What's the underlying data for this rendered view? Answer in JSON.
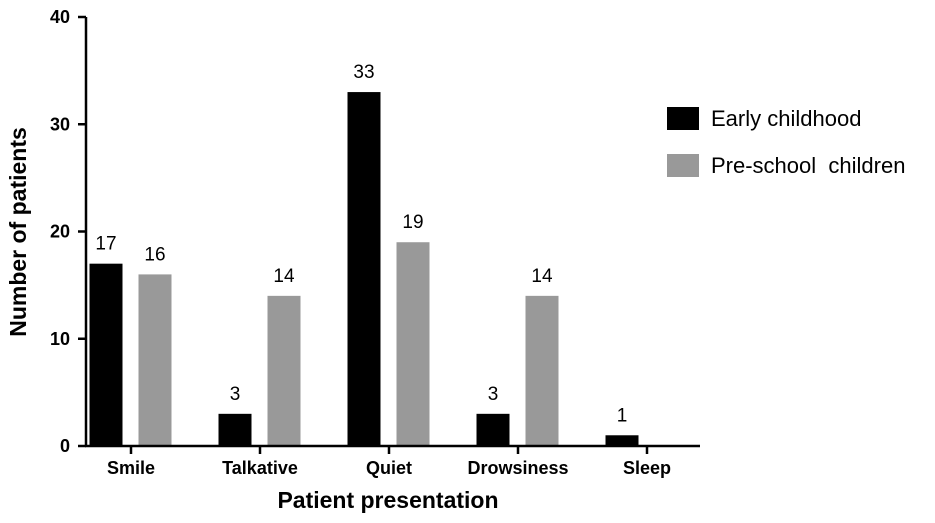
{
  "chart_data": {
    "type": "bar",
    "title": "",
    "xlabel": "Patient presentation",
    "ylabel": "Number of patients",
    "ylim": [
      0,
      40
    ],
    "yticks": [
      0,
      10,
      20,
      30,
      40
    ],
    "categories": [
      "Smile",
      "Talkative",
      "Quiet",
      "Drowsiness",
      "Sleep"
    ],
    "series": [
      {
        "name": "Early childhood",
        "color": "#000000",
        "values": [
          17,
          3,
          33,
          3,
          1
        ]
      },
      {
        "name": "Pre-school  children",
        "color": "#999999",
        "values": [
          16,
          14,
          19,
          14,
          null
        ]
      }
    ],
    "data_labels": true,
    "grid": false,
    "legend_position": "right"
  }
}
